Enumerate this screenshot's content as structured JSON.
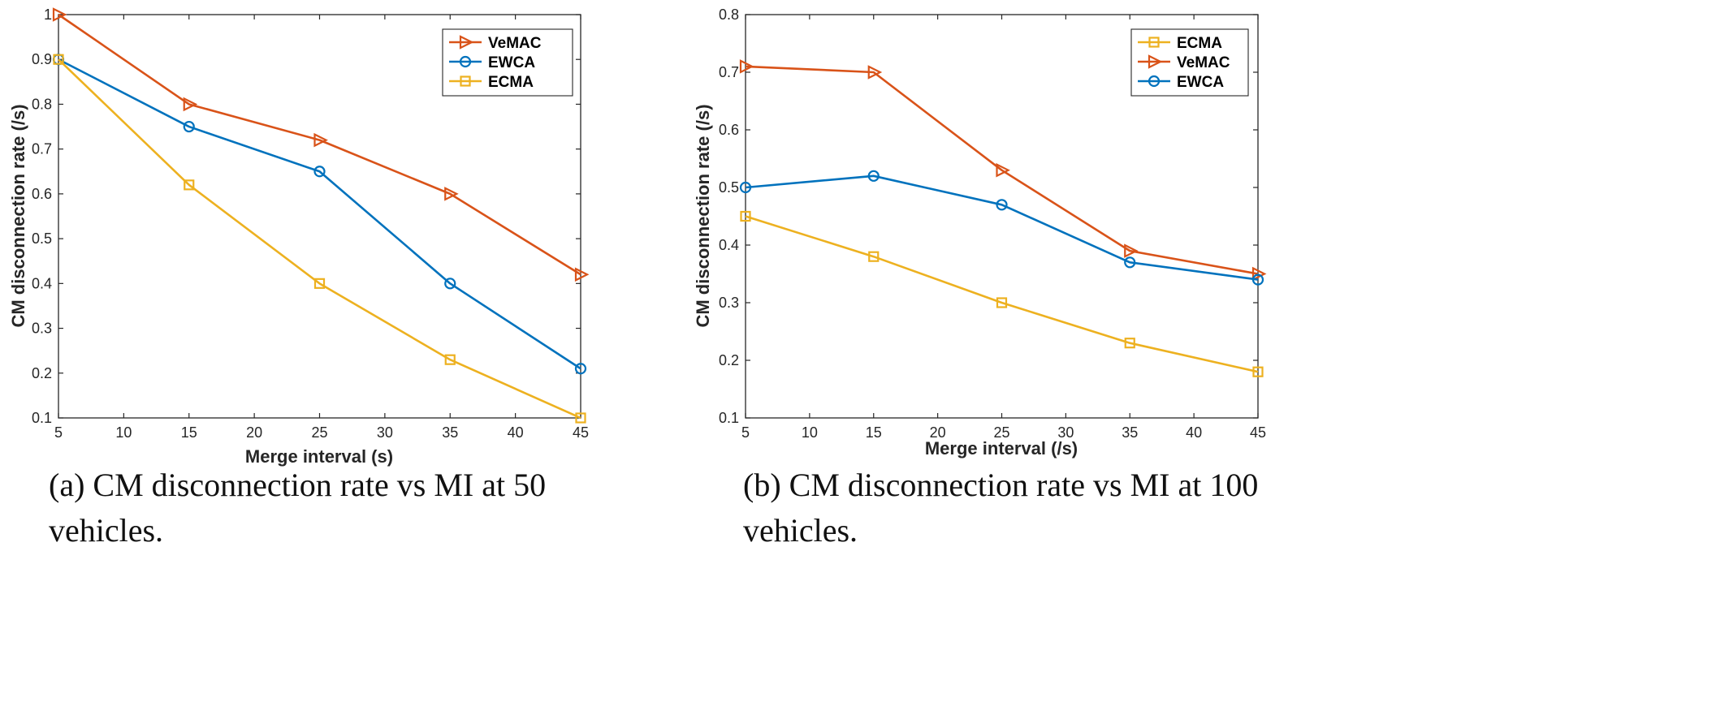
{
  "chart_data": [
    {
      "type": "line",
      "id": "a",
      "title": "",
      "xlabel": "Merge interval (s)",
      "ylabel": "CM disconnection rate (/s)",
      "xlim": [
        5,
        45
      ],
      "ylim": [
        0.1,
        1.0
      ],
      "xticks": [
        "5",
        "10",
        "15",
        "20",
        "25",
        "30",
        "35",
        "40",
        "45"
      ],
      "yticks": [
        "0.1",
        "0.2",
        "0.3",
        "0.4",
        "0.5",
        "0.6",
        "0.7",
        "0.8",
        "0.9",
        "1"
      ],
      "x": [
        5,
        15,
        25,
        35,
        45
      ],
      "series": [
        {
          "name": "VeMAC",
          "marker": "triangle-right",
          "color": "#D95319",
          "values": [
            1.0,
            0.8,
            0.72,
            0.6,
            0.42
          ]
        },
        {
          "name": "EWCA",
          "marker": "circle",
          "color": "#0072BD",
          "values": [
            0.9,
            0.75,
            0.65,
            0.4,
            0.21
          ]
        },
        {
          "name": "ECMA",
          "marker": "square",
          "color": "#EDB120",
          "values": [
            0.9,
            0.62,
            0.4,
            0.23,
            0.1
          ]
        }
      ],
      "legend": "top-right",
      "caption": "(a) CM disconnection rate vs MI at 50",
      "caption_line2": "vehicles."
    },
    {
      "type": "line",
      "id": "b",
      "title": "",
      "xlabel": "Merge interval (/s)",
      "ylabel": "CM disconnection rate (/s)",
      "xlim": [
        5,
        45
      ],
      "ylim": [
        0.1,
        0.8
      ],
      "xticks": [
        "5",
        "10",
        "15",
        "20",
        "25",
        "30",
        "35",
        "40",
        "45"
      ],
      "yticks": [
        "0.1",
        "0.2",
        "0.3",
        "0.4",
        "0.5",
        "0.6",
        "0.7",
        "0.8"
      ],
      "x": [
        5,
        15,
        25,
        35,
        45
      ],
      "series": [
        {
          "name": "ECMA",
          "marker": "square",
          "color": "#EDB120",
          "values": [
            0.45,
            0.38,
            0.3,
            0.23,
            0.18
          ]
        },
        {
          "name": "VeMAC",
          "marker": "triangle-right",
          "color": "#D95319",
          "values": [
            0.71,
            0.7,
            0.53,
            0.39,
            0.35
          ]
        },
        {
          "name": "EWCA",
          "marker": "circle",
          "color": "#0072BD",
          "values": [
            0.5,
            0.52,
            0.47,
            0.37,
            0.34
          ]
        }
      ],
      "legend": "top-right",
      "caption": "(b) CM disconnection rate vs MI at 100",
      "caption_line2": "vehicles."
    }
  ]
}
